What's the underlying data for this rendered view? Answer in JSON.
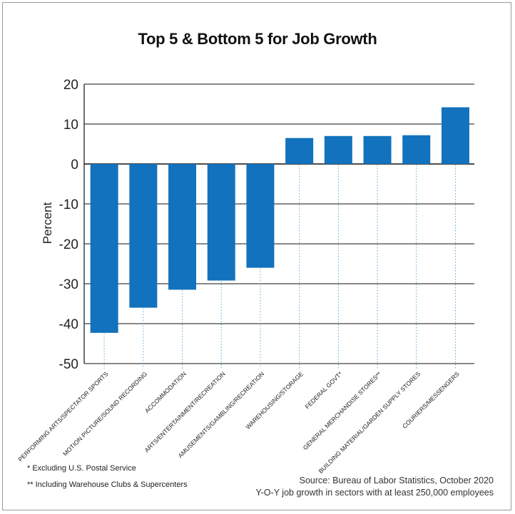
{
  "chart_data": {
    "type": "bar",
    "title": "Top 5 & Bottom 5 for Job Growth",
    "xlabel": "",
    "ylabel": "Percent",
    "ylim": [
      -50,
      20
    ],
    "yticks": [
      20,
      10,
      0,
      -10,
      -20,
      -30,
      -40,
      -50
    ],
    "grid": true,
    "categories": [
      "PERFORMING ARTS/SPECTATOR SPORTS",
      "MOTION PICTURE/SOUND RECORDING",
      "ACCOMMODATION",
      "ARTS/ENTERTAINMENT/RECREATION",
      "AMUSEMENTS/GAMBLING/RECREATION",
      "WAREHOUSING/STORAGE",
      "FEDERAL GOVT*",
      "GENERAL MERCHANDISE STORES**",
      "BUILDING MATERIAL/GARDEN SUPPLY STORES",
      "COURIERS/MESSENGERS"
    ],
    "values": [
      -42.3,
      -36,
      -31.5,
      -29.2,
      -26,
      6.5,
      7,
      7,
      7.2,
      14.2
    ],
    "bar_color": "#1272bd"
  },
  "footnotes": [
    "*  Excluding U.S. Postal Service",
    "** Including Warehouse Clubs & Supercenters"
  ],
  "source": {
    "line1": "Source: Bureau of Labor Statistics, October 2020",
    "line2": "Y-O-Y job growth in sectors with at least 250,000 employees"
  }
}
